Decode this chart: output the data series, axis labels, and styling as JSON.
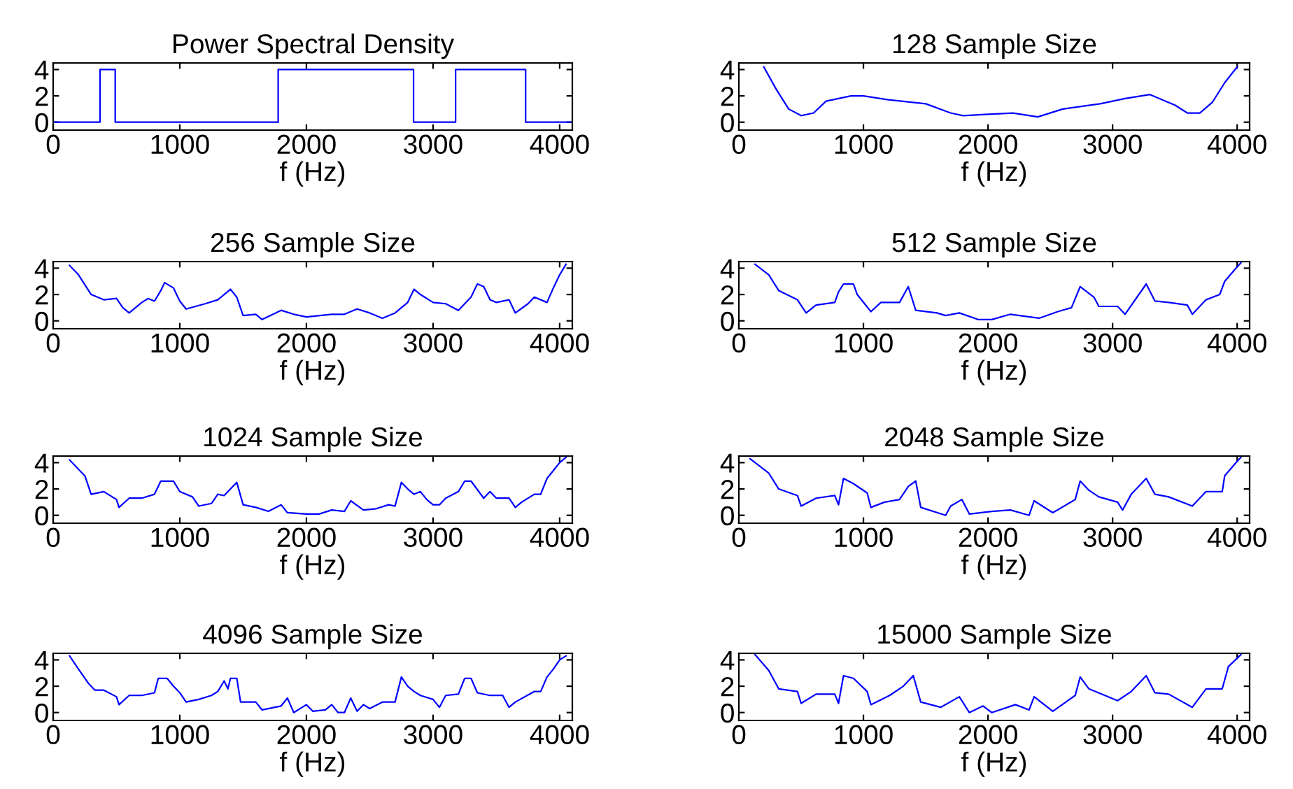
{
  "chart_data": [
    {
      "type": "step",
      "title": "Power Spectral Density",
      "xlabel": "f (Hz)",
      "xlim": [
        0,
        4100
      ],
      "ylim": [
        -0.6,
        4.5
      ],
      "xticks": [
        0,
        1000,
        2000,
        3000,
        4000
      ],
      "yticks": [
        0,
        2,
        4
      ],
      "grid": false,
      "series": [
        {
          "color": "#0000ff",
          "x": [
            0,
            370,
            490,
            1777,
            2846,
            3178,
            3731,
            4100
          ],
          "values": [
            0,
            4,
            0,
            4,
            0,
            4,
            0,
            0
          ]
        }
      ]
    },
    {
      "type": "line",
      "title": "128 Sample Size",
      "xlabel": "f (Hz)",
      "xlim": [
        0,
        4100
      ],
      "ylim": [
        -0.6,
        4.5
      ],
      "xticks": [
        0,
        1000,
        2000,
        3000,
        4000
      ],
      "yticks": [
        0,
        2,
        4
      ],
      "grid": false,
      "series": [
        {
          "color": "#0000ff",
          "x": [
            200,
            300,
            400,
            500,
            600,
            700,
            900,
            1000,
            1200,
            1500,
            1700,
            1800,
            2000,
            2200,
            2400,
            2600,
            2900,
            3100,
            3300,
            3500,
            3600,
            3700,
            3800,
            3900,
            4000
          ],
          "values": [
            4.2,
            2.5,
            1.0,
            0.5,
            0.7,
            1.6,
            2.0,
            2.0,
            1.7,
            1.4,
            0.7,
            0.5,
            0.6,
            0.7,
            0.4,
            1.0,
            1.4,
            1.8,
            2.1,
            1.3,
            0.7,
            0.7,
            1.5,
            3.0,
            4.2
          ]
        }
      ]
    },
    {
      "type": "line",
      "title": "256 Sample Size",
      "xlabel": "f (Hz)",
      "xlim": [
        0,
        4100
      ],
      "ylim": [
        -0.6,
        4.5
      ],
      "xticks": [
        0,
        1000,
        2000,
        3000,
        4000
      ],
      "yticks": [
        0,
        2,
        4
      ],
      "grid": false,
      "series": [
        {
          "color": "#0000ff",
          "x": [
            130,
            200,
            300,
            400,
            500,
            550,
            600,
            700,
            750,
            800,
            850,
            880,
            950,
            1000,
            1050,
            1200,
            1300,
            1350,
            1400,
            1450,
            1500,
            1600,
            1650,
            1800,
            1900,
            2000,
            2200,
            2300,
            2400,
            2500,
            2600,
            2700,
            2800,
            2850,
            2900,
            3000,
            3100,
            3200,
            3300,
            3350,
            3400,
            3450,
            3500,
            3600,
            3650,
            3750,
            3800,
            3900,
            3950,
            4000,
            4050
          ],
          "values": [
            4.2,
            3.5,
            2.0,
            1.6,
            1.7,
            1.0,
            0.6,
            1.4,
            1.7,
            1.5,
            2.3,
            2.9,
            2.5,
            1.5,
            0.9,
            1.3,
            1.6,
            2.0,
            2.4,
            1.8,
            0.4,
            0.5,
            0.1,
            0.8,
            0.5,
            0.3,
            0.5,
            0.5,
            0.9,
            0.6,
            0.2,
            0.6,
            1.4,
            2.4,
            2.0,
            1.4,
            1.3,
            0.8,
            1.8,
            2.8,
            2.6,
            1.6,
            1.4,
            1.6,
            0.6,
            1.3,
            1.8,
            1.4,
            2.5,
            3.5,
            4.3
          ]
        }
      ]
    },
    {
      "type": "line",
      "title": "512 Sample Size",
      "xlabel": "f (Hz)",
      "xlim": [
        0,
        4100
      ],
      "ylim": [
        -0.6,
        4.5
      ],
      "xticks": [
        0,
        1000,
        2000,
        3000,
        4000
      ],
      "yticks": [
        0,
        2,
        4
      ],
      "grid": false,
      "series": [
        {
          "color": "#0000ff",
          "x": [
            130,
            240,
            320,
            470,
            540,
            620,
            770,
            800,
            840,
            920,
            950,
            1060,
            1140,
            1290,
            1360,
            1420,
            1590,
            1660,
            1770,
            1920,
            2030,
            2180,
            2410,
            2560,
            2670,
            2740,
            2850,
            2890,
            3040,
            3100,
            3270,
            3340,
            3450,
            3600,
            3640,
            3750,
            3860,
            3900,
            3990,
            4030
          ],
          "values": [
            4.3,
            3.5,
            2.3,
            1.6,
            0.6,
            1.2,
            1.4,
            2.2,
            2.8,
            2.8,
            2.0,
            0.7,
            1.4,
            1.4,
            2.6,
            0.8,
            0.6,
            0.4,
            0.6,
            0.1,
            0.1,
            0.5,
            0.2,
            0.7,
            1.0,
            2.6,
            1.8,
            1.1,
            1.1,
            0.5,
            2.8,
            1.5,
            1.4,
            1.2,
            0.5,
            1.6,
            2.0,
            3.0,
            4.0,
            4.4
          ]
        }
      ]
    },
    {
      "type": "line",
      "title": "1024 Sample Size",
      "xlabel": "f (Hz)",
      "xlim": [
        0,
        4100
      ],
      "ylim": [
        -0.6,
        4.5
      ],
      "xticks": [
        0,
        1000,
        2000,
        3000,
        4000
      ],
      "yticks": [
        0,
        2,
        4
      ],
      "grid": false,
      "series": [
        {
          "color": "#0000ff",
          "x": [
            130,
            250,
            300,
            400,
            500,
            520,
            600,
            700,
            800,
            850,
            950,
            1000,
            1100,
            1150,
            1250,
            1300,
            1350,
            1400,
            1450,
            1500,
            1600,
            1700,
            1800,
            1850,
            2000,
            2100,
            2200,
            2300,
            2350,
            2450,
            2550,
            2650,
            2700,
            2750,
            2800,
            2850,
            2900,
            2950,
            3000,
            3050,
            3100,
            3200,
            3250,
            3300,
            3400,
            3450,
            3500,
            3600,
            3650,
            3700,
            3800,
            3850,
            3900,
            3950,
            4000,
            4050
          ],
          "values": [
            4.2,
            3.0,
            1.6,
            1.8,
            1.2,
            0.6,
            1.3,
            1.3,
            1.6,
            2.6,
            2.6,
            1.8,
            1.4,
            0.7,
            0.9,
            1.6,
            1.5,
            2.0,
            2.5,
            0.8,
            0.6,
            0.3,
            0.8,
            0.2,
            0.1,
            0.1,
            0.4,
            0.3,
            1.1,
            0.4,
            0.5,
            0.8,
            0.7,
            2.5,
            2.0,
            1.6,
            1.8,
            1.2,
            0.8,
            0.8,
            1.3,
            1.8,
            2.6,
            2.6,
            1.3,
            1.8,
            1.3,
            1.3,
            0.6,
            1.0,
            1.6,
            1.6,
            2.8,
            3.4,
            4.0,
            4.4
          ]
        }
      ]
    },
    {
      "type": "line",
      "title": "2048 Sample Size",
      "xlabel": "f (Hz)",
      "xlim": [
        0,
        4100
      ],
      "ylim": [
        -0.6,
        4.5
      ],
      "xticks": [
        0,
        1000,
        2000,
        3000,
        4000
      ],
      "yticks": [
        0,
        2,
        4
      ],
      "grid": false,
      "series": [
        {
          "color": "#0000ff",
          "x": [
            90,
            240,
            320,
            470,
            500,
            620,
            770,
            800,
            840,
            920,
            1030,
            1060,
            1170,
            1290,
            1360,
            1420,
            1460,
            1660,
            1700,
            1790,
            1850,
            2030,
            2180,
            2330,
            2370,
            2520,
            2700,
            2740,
            2810,
            2890,
            3040,
            3080,
            3150,
            3270,
            3340,
            3450,
            3640,
            3750,
            3880,
            3900,
            3990,
            4030
          ],
          "values": [
            4.3,
            3.2,
            2.0,
            1.5,
            0.7,
            1.3,
            1.5,
            0.8,
            2.8,
            2.4,
            1.7,
            0.6,
            1.0,
            1.2,
            2.2,
            2.6,
            0.6,
            0.0,
            0.7,
            1.2,
            0.1,
            0.3,
            0.4,
            0.0,
            1.1,
            0.2,
            1.2,
            2.6,
            1.9,
            1.4,
            1.0,
            0.4,
            1.6,
            2.8,
            1.6,
            1.4,
            0.7,
            1.8,
            1.8,
            3.0,
            4.0,
            4.4
          ]
        }
      ]
    },
    {
      "type": "line",
      "title": "4096 Sample Size",
      "xlabel": "f (Hz)",
      "xlim": [
        0,
        4100
      ],
      "ylim": [
        -0.6,
        4.5
      ],
      "xticks": [
        0,
        1000,
        2000,
        3000,
        4000
      ],
      "yticks": [
        0,
        2,
        4
      ],
      "grid": false,
      "series": [
        {
          "color": "#0000ff",
          "x": [
            130,
            200,
            280,
            330,
            400,
            500,
            520,
            600,
            700,
            800,
            830,
            900,
            950,
            1000,
            1050,
            1150,
            1250,
            1300,
            1350,
            1380,
            1400,
            1450,
            1480,
            1600,
            1650,
            1800,
            1850,
            1900,
            2000,
            2050,
            2150,
            2200,
            2250,
            2300,
            2350,
            2400,
            2450,
            2500,
            2600,
            2700,
            2750,
            2800,
            2850,
            2900,
            3000,
            3050,
            3100,
            3200,
            3250,
            3300,
            3350,
            3450,
            3550,
            3600,
            3650,
            3800,
            3850,
            3900,
            3950,
            4000,
            4050
          ],
          "values": [
            4.3,
            3.3,
            2.2,
            1.7,
            1.7,
            1.2,
            0.6,
            1.3,
            1.3,
            1.5,
            2.6,
            2.6,
            2.0,
            1.5,
            0.8,
            1.0,
            1.3,
            1.6,
            2.4,
            1.8,
            2.6,
            2.6,
            0.8,
            0.8,
            0.2,
            0.5,
            1.1,
            0.0,
            0.6,
            0.1,
            0.2,
            0.6,
            0.0,
            0.0,
            1.1,
            0.1,
            0.6,
            0.3,
            0.8,
            0.8,
            2.7,
            2.0,
            1.6,
            1.3,
            1.0,
            0.4,
            1.3,
            1.4,
            2.6,
            2.6,
            1.5,
            1.3,
            1.3,
            0.4,
            0.8,
            1.6,
            1.6,
            2.7,
            3.3,
            4.0,
            4.3
          ]
        }
      ]
    },
    {
      "type": "line",
      "title": "15000 Sample Size",
      "xlabel": "f (Hz)",
      "xlim": [
        0,
        4100
      ],
      "ylim": [
        -0.6,
        4.5
      ],
      "xticks": [
        0,
        1000,
        2000,
        3000,
        4000
      ],
      "yticks": [
        0,
        2,
        4
      ],
      "grid": false,
      "series": [
        {
          "color": "#0000ff",
          "x": [
            130,
            240,
            320,
            470,
            500,
            620,
            770,
            800,
            840,
            920,
            1030,
            1060,
            1210,
            1320,
            1400,
            1460,
            1620,
            1770,
            1850,
            1960,
            2030,
            2220,
            2330,
            2370,
            2520,
            2700,
            2740,
            2810,
            3040,
            3150,
            3270,
            3340,
            3450,
            3640,
            3750,
            3880,
            3930,
            4030
          ],
          "values": [
            4.4,
            3.2,
            1.8,
            1.6,
            0.7,
            1.4,
            1.4,
            0.7,
            2.8,
            2.6,
            1.6,
            0.6,
            1.3,
            2.0,
            2.8,
            0.8,
            0.4,
            1.2,
            0.0,
            0.5,
            0.0,
            0.6,
            0.2,
            1.2,
            0.1,
            1.3,
            2.7,
            1.8,
            0.9,
            1.6,
            2.8,
            1.5,
            1.4,
            0.4,
            1.8,
            1.8,
            3.5,
            4.4
          ]
        }
      ]
    }
  ]
}
